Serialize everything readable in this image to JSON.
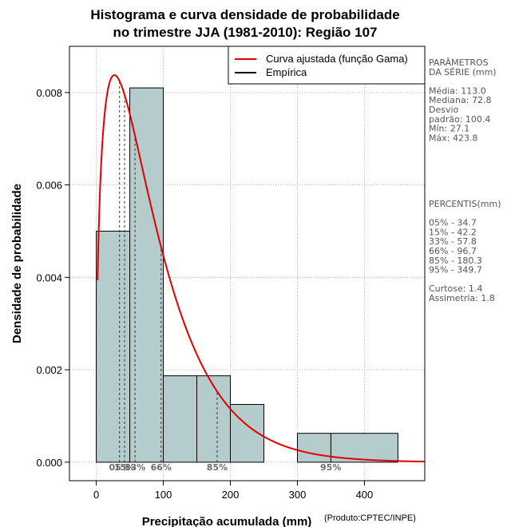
{
  "chart_data": {
    "type": "bar",
    "title_line1": "Histograma e curva densidade de probabilidade",
    "title_line2": "no trimestre JJA (1981-2010): Região 107",
    "xlabel": "Precipitação acumulada (mm)",
    "ylabel": "Densidade de probabilidade",
    "credit": "(Produto:CPTEC/INPE)",
    "xlim": [
      -40,
      490
    ],
    "ylim": [
      -0.0004,
      0.009
    ],
    "x_ticks": [
      0,
      100,
      200,
      300,
      400
    ],
    "x_tick_labels": [
      "0",
      "100",
      "200",
      "300",
      "400"
    ],
    "y_ticks": [
      0,
      0.002,
      0.004,
      0.006,
      0.008
    ],
    "y_tick_labels": [
      "0.000",
      "0.002",
      "0.004",
      "0.006",
      "0.008"
    ],
    "grid": true,
    "bar_color": "#b4cccc",
    "curve_color": "#e00000",
    "bins": [
      {
        "x0": 0,
        "x1": 50,
        "density": 0.005
      },
      {
        "x0": 50,
        "x1": 100,
        "density": 0.0081
      },
      {
        "x0": 100,
        "x1": 150,
        "density": 0.00187
      },
      {
        "x0": 150,
        "x1": 200,
        "density": 0.00187
      },
      {
        "x0": 200,
        "x1": 250,
        "density": 0.00125
      },
      {
        "x0": 250,
        "x1": 300,
        "density": 0.0
      },
      {
        "x0": 300,
        "x1": 350,
        "density": 0.000625
      },
      {
        "x0": 350,
        "x1": 450,
        "density": 0.000625
      }
    ],
    "gamma_fit": {
      "shape": 1.45,
      "scale": 60.0,
      "x_start": 2,
      "x_end": 490
    },
    "percentiles": [
      {
        "label": "05%",
        "value": 34.7,
        "show_label": true
      },
      {
        "label": "15%",
        "value": 42.2,
        "show_label": true
      },
      {
        "label": "33%",
        "value": 57.8,
        "show_label": true
      },
      {
        "label": "66%",
        "value": 96.7,
        "show_label": true
      },
      {
        "label": "85%",
        "value": 180.3,
        "show_label": true
      },
      {
        "label": "95%",
        "value": 349.7,
        "show_label": true
      }
    ],
    "legend": [
      {
        "label": "Curva ajustada (função Gama)",
        "color": "#e00000"
      },
      {
        "label": "Empírica",
        "color": "#000000"
      }
    ],
    "side_panel": [
      "PARÂMETROS",
      " DA SÉRIE (mm)",
      "",
      "Média:  113.0",
      "Mediana:  72.8",
      "Desvio",
      "padrão:  100.4",
      "Mín:  27.1",
      "Máx:  423.8",
      "",
      "",
      "",
      "",
      "",
      "",
      " PERCENTIS(mm)",
      "",
      "05% -  34.7",
      "15% -  42.2",
      "33% -  57.8",
      "66% -  96.7",
      "85% -  180.3",
      "95% -  349.7",
      "",
      "Curtose:  1.4",
      "Assimetria:  1.8"
    ]
  }
}
